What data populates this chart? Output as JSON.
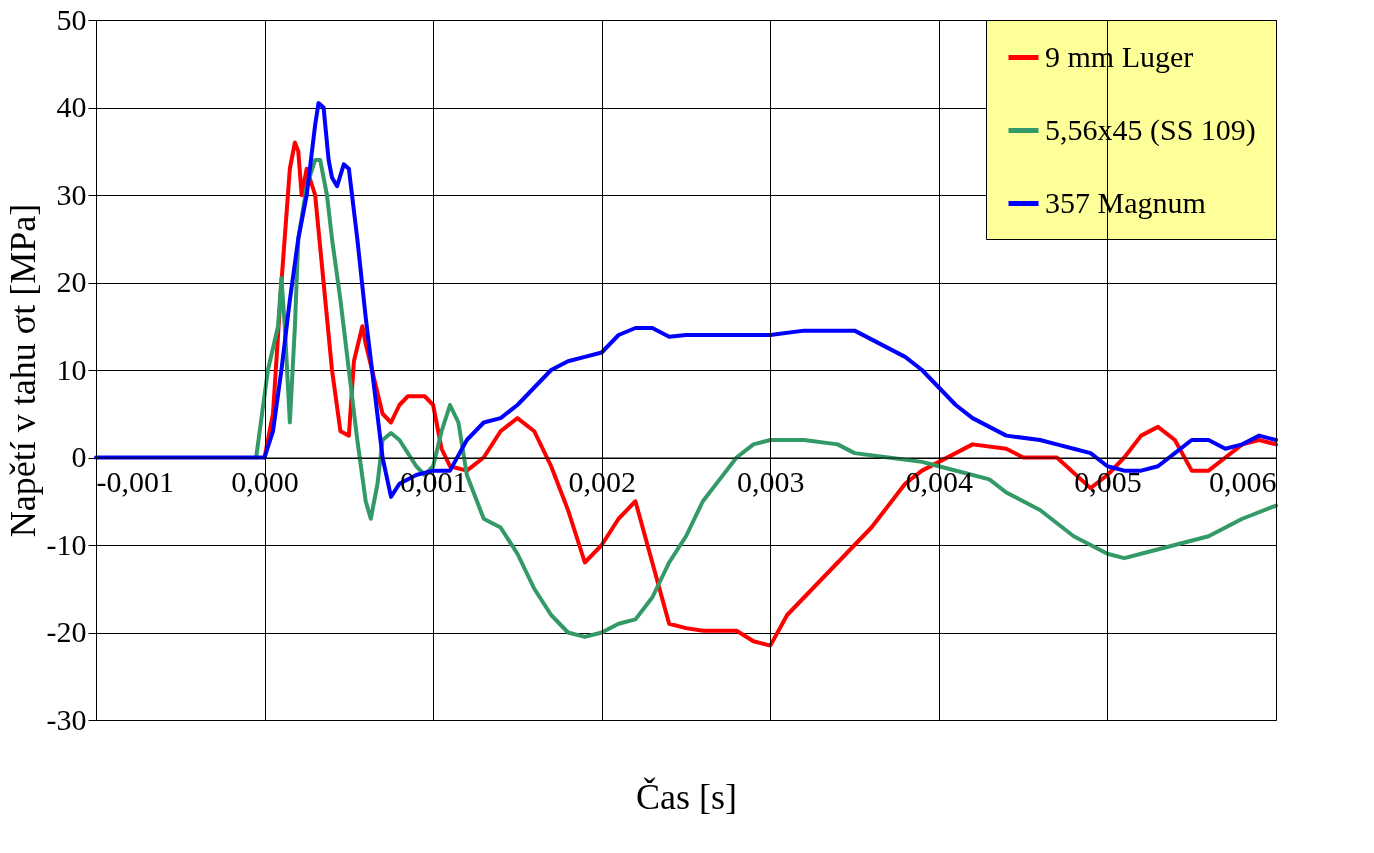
{
  "chart_data": {
    "type": "line",
    "xlabel": "Čas [s]",
    "ylabel": "Napětí v tahu σt [MPa]",
    "xlim": [
      -0.001,
      0.006
    ],
    "ylim": [
      -30,
      50
    ],
    "xticks": [
      {
        "value": -0.001,
        "label": "-0,001"
      },
      {
        "value": 0,
        "label": "0,000"
      },
      {
        "value": 0.001,
        "label": "0,001"
      },
      {
        "value": 0.002,
        "label": "0,002"
      },
      {
        "value": 0.003,
        "label": "0,003"
      },
      {
        "value": 0.004,
        "label": "0,004"
      },
      {
        "value": 0.005,
        "label": "0,005"
      },
      {
        "value": 0.006,
        "label": "0,006"
      }
    ],
    "yticks": [
      -30,
      -20,
      -10,
      0,
      10,
      20,
      30,
      40,
      50
    ],
    "grid": true,
    "legend": "top right",
    "marker": "none",
    "line_style": "solid",
    "series": [
      {
        "name": "9 mm Luger",
        "color": "#ff0000",
        "x": [
          0,
          5e-05,
          0.0001,
          0.00015,
          0.00018,
          0.0002,
          0.00022,
          0.00025,
          0.0003,
          0.00035,
          0.0004,
          0.00045,
          0.0005,
          0.00053,
          0.00058,
          0.0006,
          0.00065,
          0.0007,
          0.00075,
          0.0008,
          0.00085,
          0.00095,
          0.001,
          0.00105,
          0.0011,
          0.0012,
          0.0013,
          0.0014,
          0.0015,
          0.0016,
          0.0017,
          0.0018,
          0.0019,
          0.002,
          0.0021,
          0.0022,
          0.0023,
          0.0024,
          0.0025,
          0.0026,
          0.0028,
          0.0029,
          0.003,
          0.0031,
          0.0032,
          0.0034,
          0.0036,
          0.0038,
          0.0039,
          0.004,
          0.0041,
          0.0042,
          0.0044,
          0.0045,
          0.0047,
          0.0049,
          0.005,
          0.0051,
          0.0052,
          0.0053,
          0.0054,
          0.0055,
          0.0056,
          0.0057,
          0.0058,
          0.0059,
          0.006
        ],
        "values": [
          0,
          5,
          20,
          33,
          36,
          35,
          30,
          33,
          30,
          20,
          10,
          3,
          2.5,
          11,
          15,
          13,
          9,
          5,
          4,
          6,
          7,
          7,
          6,
          1,
          -1,
          -1.5,
          0,
          3,
          4.5,
          3,
          -1,
          -6,
          -12,
          -10,
          -7,
          -5,
          -12,
          -19,
          -19.5,
          -19.8,
          -19.8,
          -21,
          -21.5,
          -18,
          -16,
          -12,
          -8,
          -3,
          -1.5,
          -0.5,
          0.5,
          1.5,
          1,
          0,
          0,
          -3.5,
          -2,
          0,
          2.5,
          3.5,
          2,
          -1.5,
          -1.5,
          0,
          1.5,
          2,
          1.5
        ]
      },
      {
        "name": "5,56x45 (SS 109)",
        "color": "#339966",
        "x": [
          -5e-05,
          2e-05,
          8e-05,
          0.0001,
          0.00012,
          0.00015,
          0.00018,
          0.0002,
          0.00025,
          0.0003,
          0.00033,
          0.00037,
          0.0004,
          0.00045,
          0.0005,
          0.00055,
          0.0006,
          0.00063,
          0.00067,
          0.0007,
          0.00075,
          0.0008,
          0.0009,
          0.00095,
          0.001,
          0.00105,
          0.0011,
          0.00115,
          0.0012,
          0.0013,
          0.0014,
          0.0015,
          0.0016,
          0.0017,
          0.0018,
          0.0019,
          0.002,
          0.0021,
          0.0022,
          0.0023,
          0.0024,
          0.0025,
          0.0026,
          0.0027,
          0.0028,
          0.0029,
          0.003,
          0.0032,
          0.0034,
          0.0035,
          0.0037,
          0.0039,
          0.004,
          0.0042,
          0.0043,
          0.0044,
          0.0046,
          0.0048,
          0.005,
          0.0051,
          0.0052,
          0.0054,
          0.0056,
          0.0058,
          0.006
        ],
        "values": [
          0,
          10,
          15,
          20.5,
          15,
          4,
          15,
          25,
          31,
          34,
          34,
          30,
          25,
          18,
          10,
          2,
          -5,
          -7,
          -3,
          2,
          2.8,
          2,
          -1,
          -2,
          -1,
          3,
          6,
          4,
          -2,
          -7,
          -8,
          -11,
          -15,
          -18,
          -20,
          -20.5,
          -20,
          -19,
          -18.5,
          -16,
          -12,
          -9,
          -5,
          -2.5,
          0,
          1.5,
          2,
          2,
          1.5,
          0.5,
          0,
          -0.5,
          -1,
          -2,
          -2.5,
          -4,
          -6,
          -9,
          -11,
          -11.5,
          -11,
          -10,
          -9,
          -7,
          -5.5
        ]
      },
      {
        "name": "357 Magnum",
        "color": "#0000ff",
        "x": [
          -0.001,
          0,
          5e-05,
          0.0001,
          0.00015,
          0.0002,
          0.00025,
          0.0003,
          0.00032,
          0.00035,
          0.00038,
          0.0004,
          0.00043,
          0.00047,
          0.0005,
          0.00055,
          0.0006,
          0.00065,
          0.0007,
          0.00075,
          0.0008,
          0.0009,
          0.001,
          0.0011,
          0.0012,
          0.0013,
          0.0014,
          0.0015,
          0.0016,
          0.0017,
          0.0018,
          0.0019,
          0.002,
          0.0021,
          0.0022,
          0.0023,
          0.0024,
          0.0025,
          0.0027,
          0.003,
          0.0032,
          0.0035,
          0.0038,
          0.0039,
          0.004,
          0.0041,
          0.0042,
          0.0043,
          0.0044,
          0.0046,
          0.0047,
          0.0048,
          0.0049,
          0.005,
          0.0051,
          0.0052,
          0.0053,
          0.0054,
          0.0055,
          0.0056,
          0.0057,
          0.0058,
          0.0059,
          0.006
        ],
        "values": [
          0,
          0,
          3,
          10,
          18,
          25,
          30,
          38,
          40.5,
          40,
          34,
          32,
          31,
          33.5,
          33,
          25,
          16,
          8,
          0,
          -4.5,
          -3,
          -2,
          -1.5,
          -1.5,
          2,
          4,
          4.5,
          6,
          8,
          10,
          11,
          11.5,
          12,
          14,
          14.8,
          14.8,
          13.8,
          14,
          14,
          14,
          14.5,
          14.5,
          11.5,
          10,
          8,
          6,
          4.5,
          3.5,
          2.5,
          2,
          1.5,
          1,
          0.5,
          -1,
          -1.5,
          -1.5,
          -1,
          0.5,
          2,
          2,
          1,
          1.5,
          2.5,
          2
        ]
      }
    ]
  }
}
